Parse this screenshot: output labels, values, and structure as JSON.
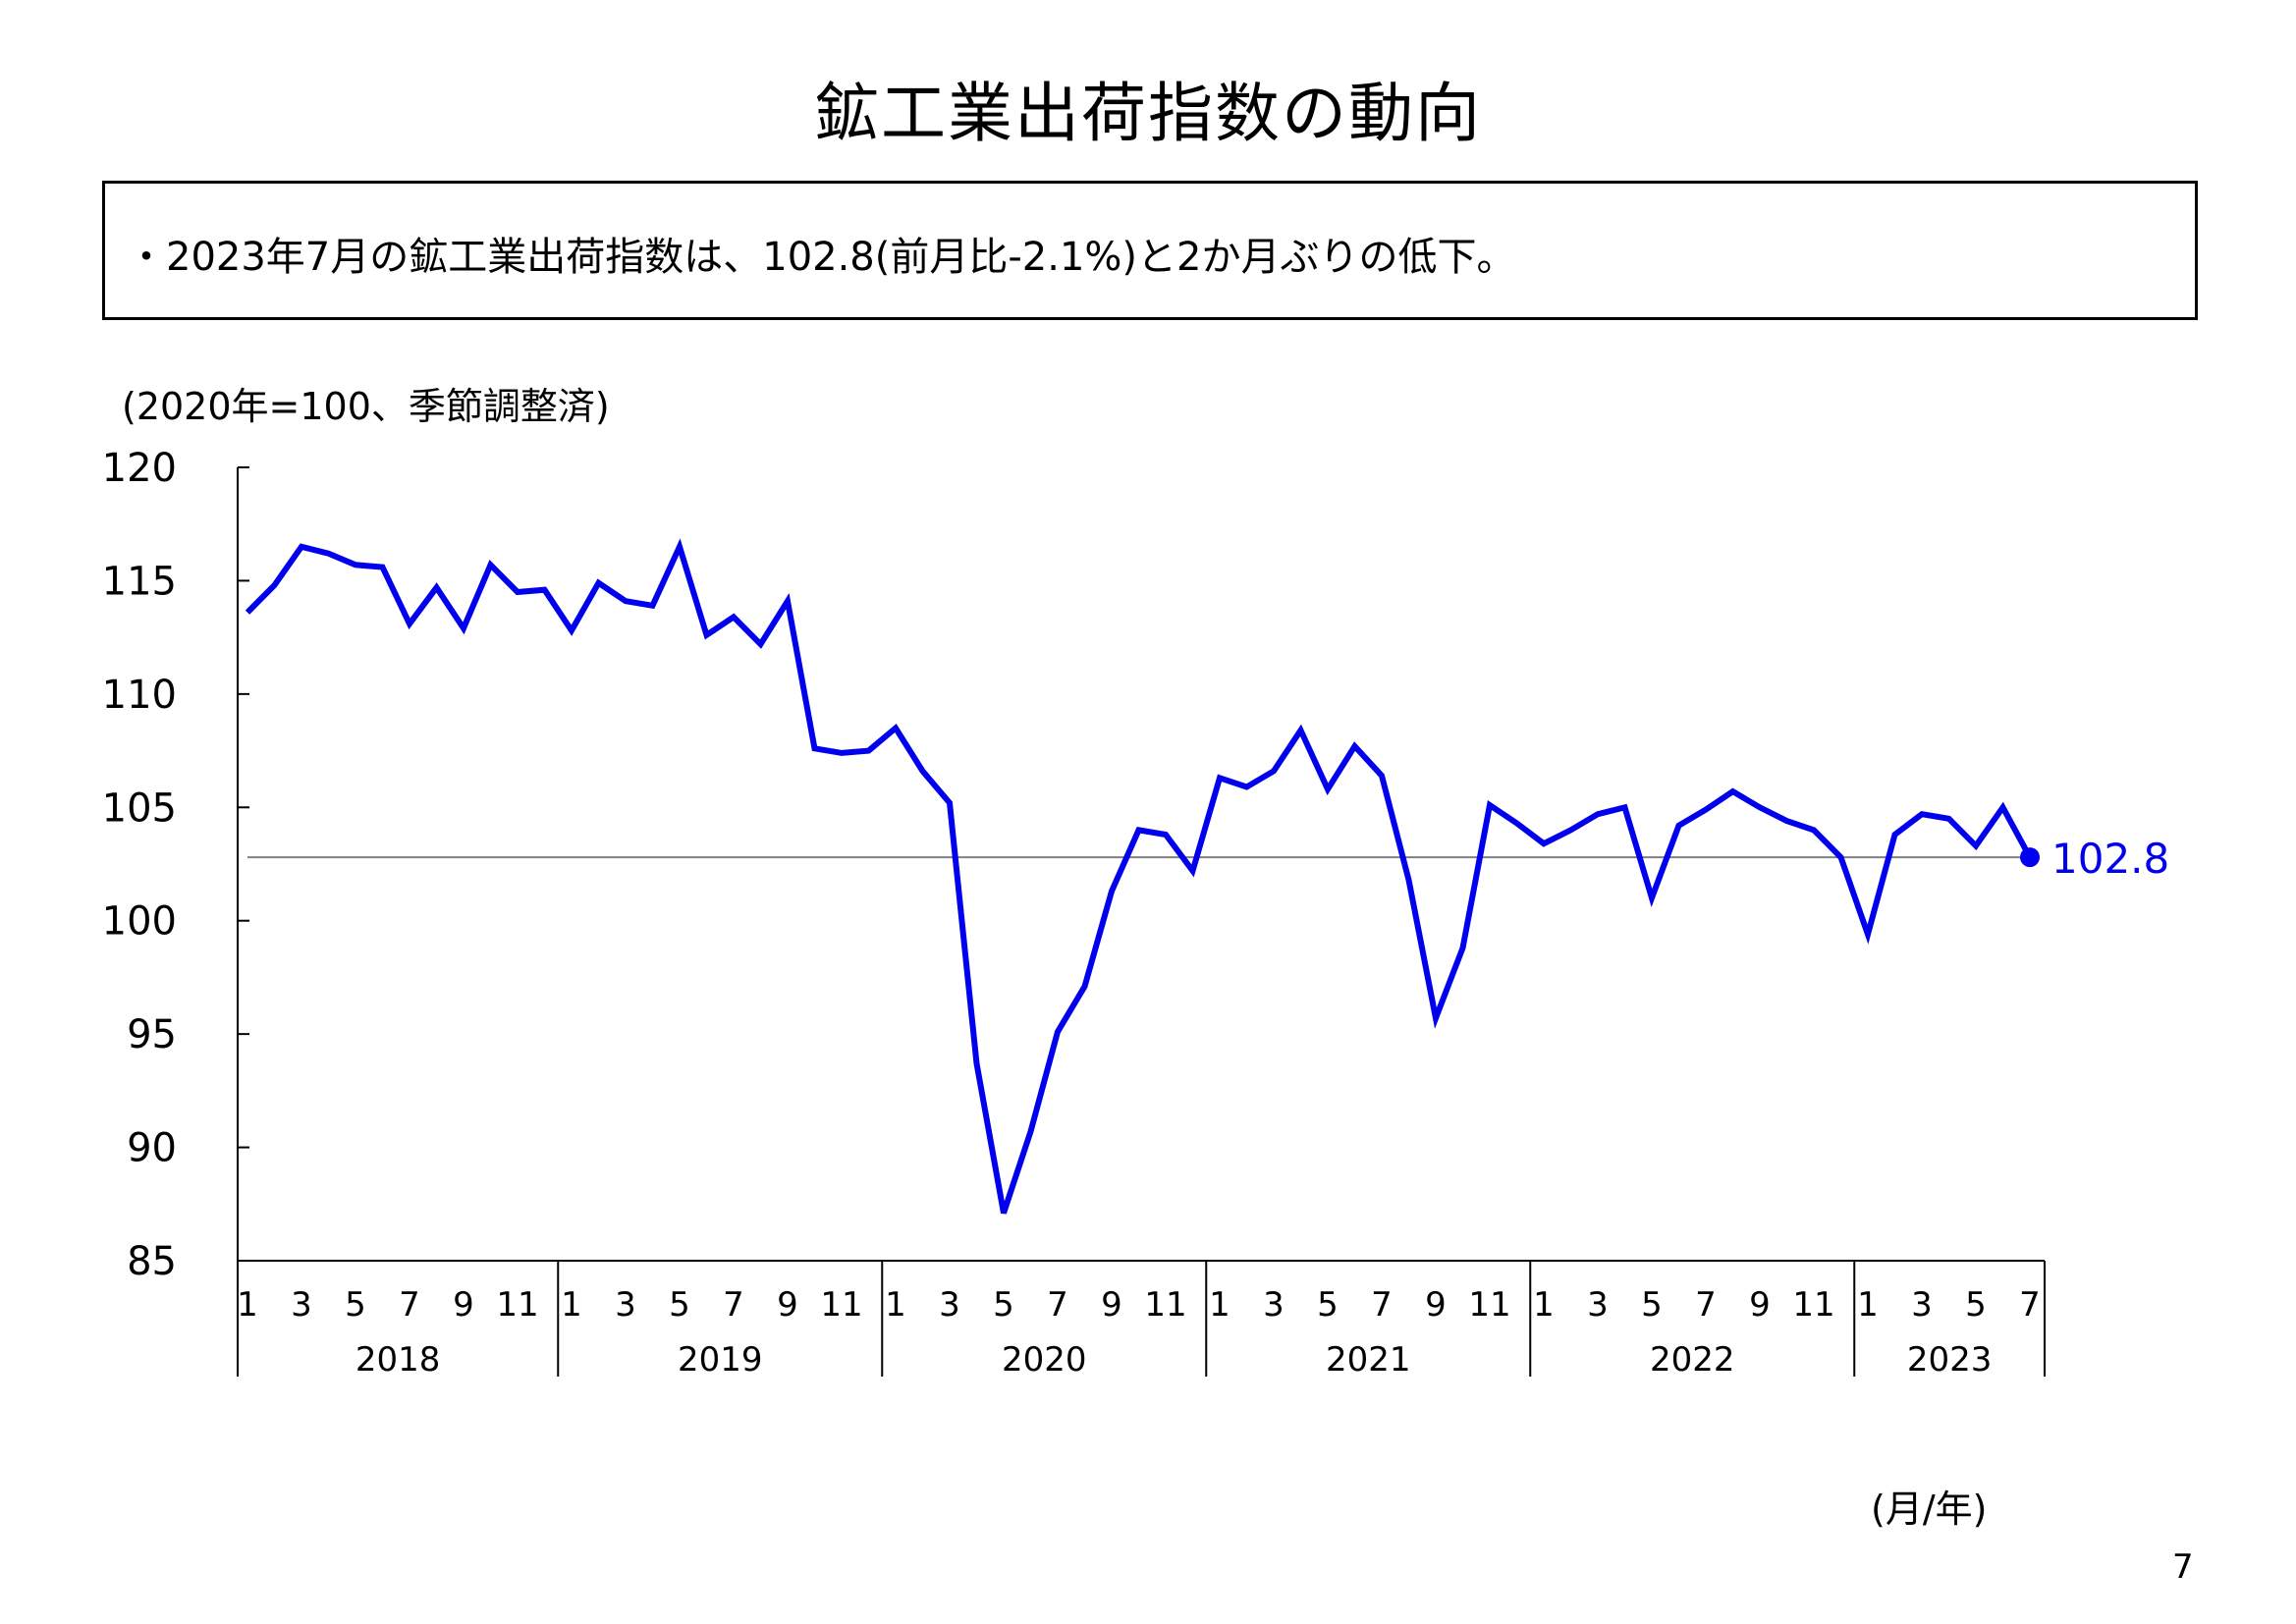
{
  "page": {
    "title": "鉱工業出荷指数の動向",
    "summary": "・2023年7月の鉱工業出荷指数は、102.8(前月比-2.1%)と2か月ぶりの低下。",
    "unit_note": "(2020年=100、季節調整済)",
    "axis_note": "(月/年)",
    "page_number": "7"
  },
  "chart_data": {
    "type": "line",
    "title": "",
    "xlabel": "(月/年)",
    "ylabel": "(2020年=100、季節調整済)",
    "ylim": [
      85,
      120
    ],
    "yticks": [
      85,
      90,
      95,
      100,
      105,
      110,
      115,
      120
    ],
    "years": [
      "2018",
      "2019",
      "2020",
      "2021",
      "2022",
      "2023"
    ],
    "month_ticks": [
      "1",
      "3",
      "5",
      "7",
      "9",
      "11"
    ],
    "month_ticks_2023": [
      "1",
      "3",
      "5",
      "7"
    ],
    "series": [
      {
        "color": "#0000ee",
        "x": [
          "2018-01",
          "2018-02",
          "2018-03",
          "2018-04",
          "2018-05",
          "2018-06",
          "2018-07",
          "2018-08",
          "2018-09",
          "2018-10",
          "2018-11",
          "2018-12",
          "2019-01",
          "2019-02",
          "2019-03",
          "2019-04",
          "2019-05",
          "2019-06",
          "2019-07",
          "2019-08",
          "2019-09",
          "2019-10",
          "2019-11",
          "2019-12",
          "2020-01",
          "2020-02",
          "2020-03",
          "2020-04",
          "2020-05",
          "2020-06",
          "2020-07",
          "2020-08",
          "2020-09",
          "2020-10",
          "2020-11",
          "2020-12",
          "2021-01",
          "2021-02",
          "2021-03",
          "2021-04",
          "2021-05",
          "2021-06",
          "2021-07",
          "2021-08",
          "2021-09",
          "2021-10",
          "2021-11",
          "2021-12",
          "2022-01",
          "2022-02",
          "2022-03",
          "2022-04",
          "2022-05",
          "2022-06",
          "2022-07",
          "2022-08",
          "2022-09",
          "2022-10",
          "2022-11",
          "2022-12",
          "2023-01",
          "2023-02",
          "2023-03",
          "2023-04",
          "2023-05",
          "2023-06",
          "2023-07"
        ],
        "values": [
          113.6,
          114.8,
          116.5,
          116.2,
          115.7,
          115.6,
          113.1,
          114.7,
          112.9,
          115.7,
          114.5,
          114.6,
          112.8,
          114.9,
          114.1,
          113.9,
          116.5,
          112.6,
          113.4,
          112.2,
          114.1,
          107.6,
          107.4,
          107.5,
          108.5,
          106.6,
          105.2,
          93.7,
          87.1,
          90.7,
          95.1,
          97.1,
          101.3,
          104.0,
          103.8,
          102.2,
          106.3,
          105.9,
          106.6,
          108.4,
          105.8,
          107.7,
          106.4,
          101.8,
          95.7,
          98.8,
          105.1,
          104.3,
          103.4,
          104.0,
          104.7,
          105.0,
          101.0,
          104.2,
          104.9,
          105.7,
          105.0,
          104.4,
          104.0,
          102.8,
          99.4,
          103.8,
          104.7,
          104.5,
          103.3,
          105.0,
          102.8
        ]
      }
    ],
    "reference_line": 102.8,
    "last_value_label": "102.8"
  }
}
